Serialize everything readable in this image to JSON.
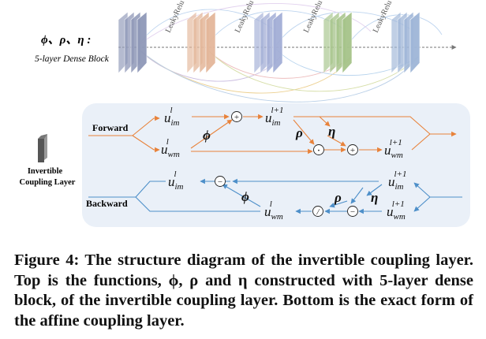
{
  "top": {
    "functions_label": "ϕ、ρ、η :",
    "block_label": "5-layer Dense Block",
    "activation_label": "LeakyRelu",
    "block_colors": [
      "#8f98b8",
      "#e4b79a",
      "#a3aed6",
      "#a6c48a",
      "#9fb6d8"
    ]
  },
  "legend": {
    "line1": "Invertible",
    "line2": "Coupling Layer"
  },
  "bottom": {
    "forward_label": "Forward",
    "backward_label": "Backward",
    "forward_color": "#e8823a",
    "backward_color": "#4d8fc9",
    "panel_color": "#eaf0f8",
    "math": {
      "u": "u",
      "sub_im": "im",
      "sub_wm": "wm",
      "sup_l": "l",
      "sup_l1": "l+1",
      "phi": "ϕ",
      "rho": "ρ",
      "eta": "η",
      "plus": "+",
      "minus": "−",
      "odot": "·",
      "divide": "/"
    }
  },
  "caption": {
    "label": "Figure 4:",
    "text": " The structure diagram of the invertible coupling layer. Top is the functions, ϕ, ρ and η constructed with 5-layer dense block, of the invertible coupling layer. Bottom is the exact form of the affine coupling layer."
  }
}
